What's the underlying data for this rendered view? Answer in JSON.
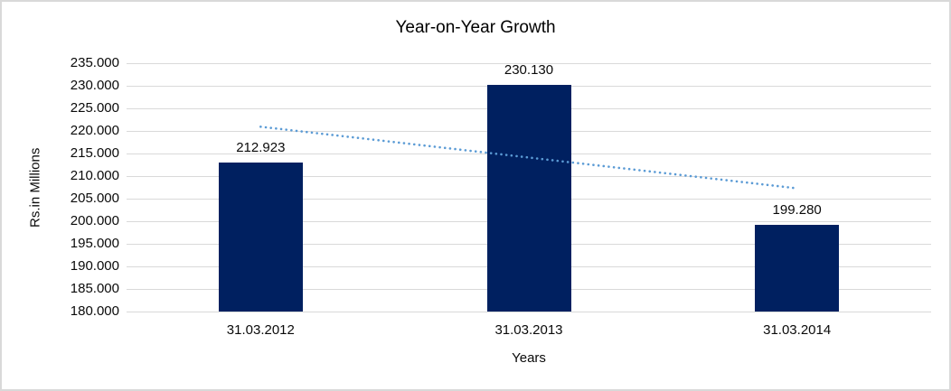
{
  "chart": {
    "title": "Year-on-Year Growth",
    "y_axis_title": "Rs.in Millions",
    "x_axis_title": "Years",
    "colors": {
      "bar": "#002060",
      "trendline": "#5B9BD5",
      "gridline": "#D9D9D9",
      "frame_border": "#D9D9D9",
      "text": "#0a0a0a",
      "background": "#FFFFFF"
    }
  },
  "chart_data": {
    "type": "bar",
    "title": "Year-on-Year Growth",
    "xlabel": "Years",
    "ylabel": "Rs.in Millions",
    "categories": [
      "31.03.2012",
      "31.03.2013",
      "31.03.2014"
    ],
    "series": [
      {
        "name": "Rs.in Millions",
        "values": [
          212923,
          230130,
          199280
        ],
        "value_labels": [
          "212.923",
          "230.130",
          "199.280"
        ],
        "color": "#002060"
      }
    ],
    "ylim": [
      180000,
      235000
    ],
    "yticks": [
      {
        "value": 180000,
        "label": "180.000"
      },
      {
        "value": 185000,
        "label": "185.000"
      },
      {
        "value": 190000,
        "label": "190.000"
      },
      {
        "value": 195000,
        "label": "195.000"
      },
      {
        "value": 200000,
        "label": "200.000"
      },
      {
        "value": 205000,
        "label": "205.000"
      },
      {
        "value": 210000,
        "label": "210.000"
      },
      {
        "value": 215000,
        "label": "215.000"
      },
      {
        "value": 220000,
        "label": "220.000"
      },
      {
        "value": 225000,
        "label": "225.000"
      },
      {
        "value": 230000,
        "label": "230.000"
      },
      {
        "value": 235000,
        "label": "235.000"
      }
    ],
    "grid": true,
    "legend": false,
    "trendline": {
      "type": "linear",
      "style": "dotted",
      "color": "#5B9BD5",
      "start_value": 220930,
      "end_value": 207290
    }
  }
}
